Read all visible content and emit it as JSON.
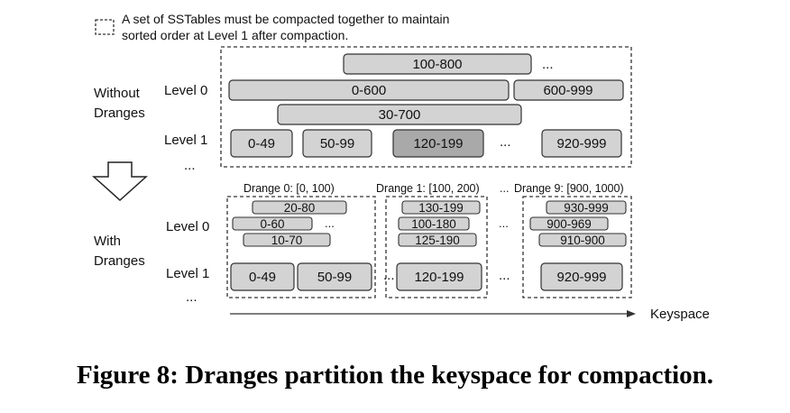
{
  "legend": {
    "line1": "A set of SSTables must be compacted together to maintain",
    "line2": "sorted order at Level 1 after compaction."
  },
  "without": {
    "label_line1": "Without",
    "label_line2": "Dranges",
    "level0_label": "Level 0",
    "level1_label": "Level 1",
    "more_levels": "...",
    "level0_sstables": [
      {
        "range": "100-800",
        "shade": "light"
      },
      {
        "range": "0-600",
        "shade": "light"
      },
      {
        "range": "600-999",
        "shade": "light"
      },
      {
        "range": "30-700",
        "shade": "light"
      }
    ],
    "level0_more": "...",
    "level1_sstables": [
      {
        "range": "0-49",
        "shade": "light"
      },
      {
        "range": "50-99",
        "shade": "light"
      },
      {
        "range": "120-199",
        "shade": "dark"
      },
      {
        "range": "920-999",
        "shade": "light"
      }
    ],
    "level1_more": "..."
  },
  "with": {
    "label_line1": "With",
    "label_line2": "Dranges",
    "level0_label": "Level 0",
    "level1_label": "Level 1",
    "more_levels": "...",
    "between_dranges": "...",
    "dranges": [
      {
        "title": "Drange 0: [0, 100)",
        "level0_sstables": [
          "20-80",
          "0-60",
          "10-70"
        ],
        "level0_more": "...",
        "level1_sstables": [
          "0-49",
          "50-99"
        ]
      },
      {
        "title": "Drange 1: [100, 200)",
        "level0_sstables": [
          "130-199",
          "100-180",
          "125-190"
        ],
        "level0_more": "",
        "level1_sstables": [
          "120-199"
        ]
      },
      {
        "title": "Drange 9: [900, 1000)",
        "level0_sstables": [
          "930-999",
          "900-969",
          "910-900"
        ],
        "level0_more": "",
        "level1_sstables": [
          "920-999"
        ]
      }
    ],
    "level0_gap_dots": "...",
    "level1_gap_dots": [
      "...",
      "..."
    ]
  },
  "axis": {
    "label": "Keyspace"
  },
  "caption": "Figure 8: Dranges partition the keyspace for compaction.",
  "colors": {
    "sstable_light": "#d3d3d3",
    "sstable_dark": "#a9a9a9",
    "stroke": "#333333",
    "background": "#ffffff"
  }
}
